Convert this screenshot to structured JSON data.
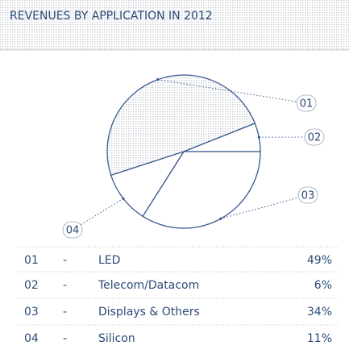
{
  "chart_data": {
    "type": "pie",
    "title": "REVENUES BY APPLICATION IN 2012",
    "codes": [
      "01",
      "02",
      "03",
      "04"
    ],
    "separator": "-",
    "categories": [
      "LED",
      "Telecom/Datacom",
      "Displays & Others",
      "Silicon"
    ],
    "values": [
      49,
      6,
      34,
      11
    ],
    "value_labels": [
      "49%",
      "6%",
      "34%",
      "11%"
    ],
    "color": "#3a5b8f"
  }
}
